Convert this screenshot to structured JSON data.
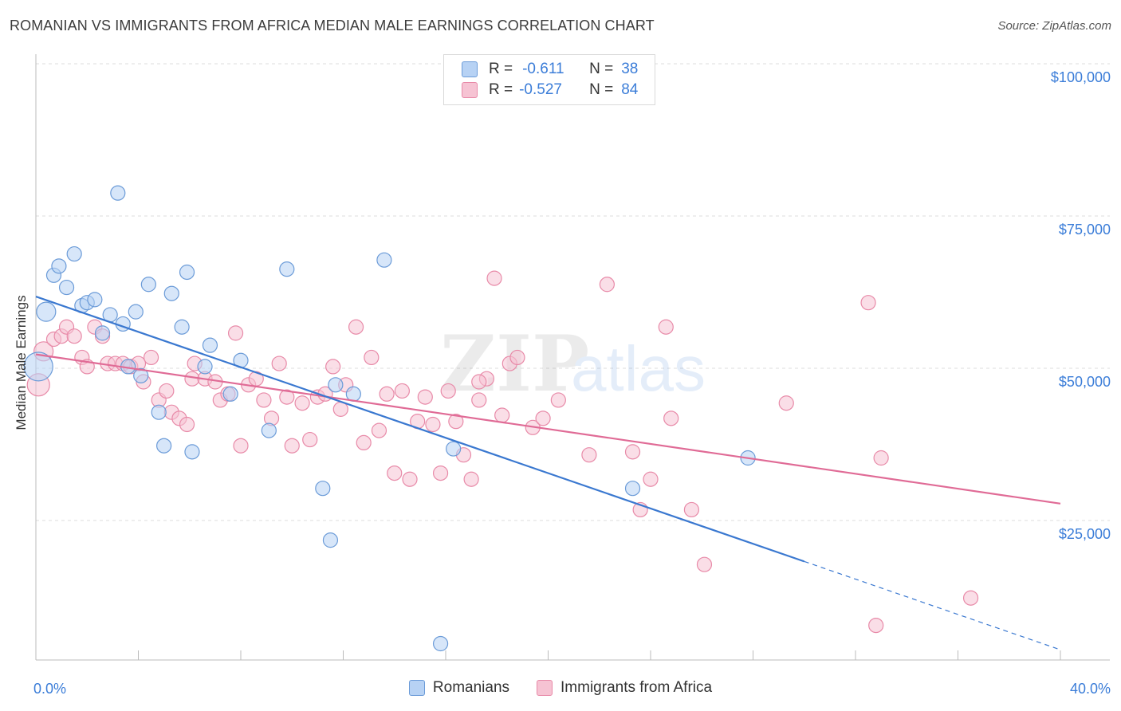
{
  "title": "ROMANIAN VS IMMIGRANTS FROM AFRICA MEDIAN MALE EARNINGS CORRELATION CHART",
  "source": "Source: ZipAtlas.com",
  "watermark": {
    "zip": "ZIP",
    "atlas": "atlas"
  },
  "legend": {
    "r_label": "R =",
    "n_label": "N =",
    "rows": [
      {
        "r": "-0.611",
        "n": "38"
      },
      {
        "r": "-0.527",
        "n": "84"
      }
    ]
  },
  "colors": {
    "blue_fill": "#b7d2f4",
    "blue_stroke": "#6b9bd8",
    "blue_line": "#3a78d0",
    "pink_fill": "#f6c3d3",
    "pink_stroke": "#e88aa8",
    "pink_line": "#e06b96",
    "tick_blue": "#3b7dd8",
    "grid": "#dcdcdc"
  },
  "chart_data": {
    "type": "scatter",
    "ylabel": "Median Male Earnings",
    "xlim": [
      0,
      40
    ],
    "ylim": [
      5000,
      105000
    ],
    "x_tick_labels": {
      "min": "0.0%",
      "max": "40.0%"
    },
    "y_ticks": [
      {
        "value": 100000,
        "label": "$100,000"
      },
      {
        "value": 75000,
        "label": "$75,000"
      },
      {
        "value": 50000,
        "label": "$50,000"
      },
      {
        "value": 25000,
        "label": "$25,000"
      }
    ],
    "series": [
      {
        "name": "Romanians",
        "points": [
          [
            0.1,
            52500
          ],
          [
            0.4,
            61500
          ],
          [
            0.7,
            67500
          ],
          [
            0.9,
            69000
          ],
          [
            1.2,
            65500
          ],
          [
            1.5,
            71000
          ],
          [
            1.8,
            62500
          ],
          [
            2.0,
            63000
          ],
          [
            2.3,
            63500
          ],
          [
            2.6,
            58000
          ],
          [
            2.9,
            61000
          ],
          [
            3.2,
            81000
          ],
          [
            3.4,
            59500
          ],
          [
            3.6,
            52500
          ],
          [
            3.9,
            61500
          ],
          [
            4.1,
            51000
          ],
          [
            4.4,
            66000
          ],
          [
            4.8,
            45000
          ],
          [
            5.0,
            39500
          ],
          [
            5.3,
            64500
          ],
          [
            5.7,
            59000
          ],
          [
            5.9,
            68000
          ],
          [
            6.1,
            38500
          ],
          [
            6.6,
            52500
          ],
          [
            6.8,
            56000
          ],
          [
            7.6,
            48000
          ],
          [
            8.0,
            53500
          ],
          [
            9.1,
            42000
          ],
          [
            9.8,
            68500
          ],
          [
            11.2,
            32500
          ],
          [
            11.7,
            49500
          ],
          [
            12.4,
            48000
          ],
          [
            13.6,
            70000
          ],
          [
            15.8,
            7000
          ],
          [
            16.3,
            39000
          ],
          [
            23.3,
            32500
          ],
          [
            11.5,
            24000
          ],
          [
            27.8,
            37500
          ]
        ],
        "trend": {
          "x0": 0,
          "y0": 64000,
          "x1": 30,
          "y1": 20500,
          "dash_to_x": 40,
          "dash_to_y": 6000
        }
      },
      {
        "name": "Immigrants from Africa",
        "points": [
          [
            0.1,
            49500
          ],
          [
            0.3,
            55000
          ],
          [
            0.7,
            57000
          ],
          [
            1.0,
            57500
          ],
          [
            1.2,
            59000
          ],
          [
            1.5,
            57500
          ],
          [
            1.8,
            54000
          ],
          [
            2.0,
            52500
          ],
          [
            2.3,
            59000
          ],
          [
            2.6,
            57500
          ],
          [
            2.8,
            53000
          ],
          [
            3.1,
            53000
          ],
          [
            3.4,
            53000
          ],
          [
            3.7,
            52500
          ],
          [
            4.0,
            53000
          ],
          [
            4.2,
            50000
          ],
          [
            4.5,
            54000
          ],
          [
            4.8,
            47000
          ],
          [
            5.1,
            48500
          ],
          [
            5.3,
            45000
          ],
          [
            5.6,
            44000
          ],
          [
            5.9,
            43000
          ],
          [
            6.1,
            50500
          ],
          [
            6.2,
            53000
          ],
          [
            6.6,
            50500
          ],
          [
            7.0,
            50000
          ],
          [
            7.2,
            47000
          ],
          [
            7.5,
            48000
          ],
          [
            7.8,
            58000
          ],
          [
            8.0,
            39500
          ],
          [
            8.3,
            49500
          ],
          [
            8.6,
            50500
          ],
          [
            8.9,
            47000
          ],
          [
            9.2,
            44000
          ],
          [
            9.5,
            53000
          ],
          [
            9.8,
            47500
          ],
          [
            10.0,
            39500
          ],
          [
            10.4,
            46500
          ],
          [
            10.7,
            40500
          ],
          [
            11.0,
            47500
          ],
          [
            11.3,
            48000
          ],
          [
            11.6,
            52500
          ],
          [
            11.9,
            45500
          ],
          [
            12.1,
            49500
          ],
          [
            12.5,
            59000
          ],
          [
            12.8,
            40000
          ],
          [
            13.1,
            54000
          ],
          [
            13.4,
            42000
          ],
          [
            13.7,
            48000
          ],
          [
            14.0,
            35000
          ],
          [
            14.3,
            48500
          ],
          [
            14.6,
            34000
          ],
          [
            14.9,
            43500
          ],
          [
            15.2,
            47500
          ],
          [
            15.5,
            43000
          ],
          [
            15.8,
            35000
          ],
          [
            16.1,
            48500
          ],
          [
            16.4,
            43500
          ],
          [
            16.7,
            38000
          ],
          [
            17.0,
            34000
          ],
          [
            17.3,
            47000
          ],
          [
            17.6,
            50500
          ],
          [
            17.9,
            67000
          ],
          [
            18.2,
            44500
          ],
          [
            18.5,
            53000
          ],
          [
            18.8,
            54000
          ],
          [
            19.4,
            42500
          ],
          [
            19.8,
            44000
          ],
          [
            20.4,
            47000
          ],
          [
            21.6,
            38000
          ],
          [
            22.3,
            66000
          ],
          [
            23.3,
            38500
          ],
          [
            23.6,
            29000
          ],
          [
            24.0,
            34000
          ],
          [
            24.6,
            59000
          ],
          [
            24.8,
            44000
          ],
          [
            25.6,
            29000
          ],
          [
            26.1,
            20000
          ],
          [
            29.3,
            46500
          ],
          [
            32.5,
            63000
          ],
          [
            33.0,
            37500
          ],
          [
            32.8,
            10000
          ],
          [
            36.5,
            14500
          ],
          [
            17.3,
            50000
          ]
        ],
        "trend": {
          "x0": 0,
          "y0": 54500,
          "x1": 40,
          "y1": 30000
        }
      }
    ]
  }
}
